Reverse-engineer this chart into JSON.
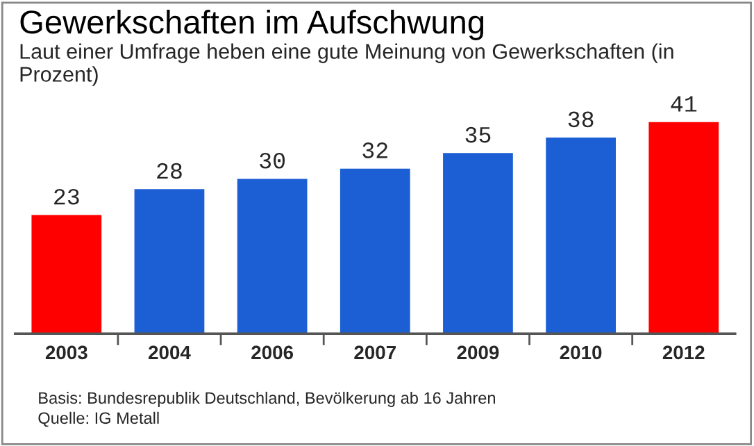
{
  "chart_data": {
    "type": "bar",
    "title": "Gewerkschaften im Aufschwung",
    "subtitle": "Laut einer Umfrage heben eine gute Meinung von Gewerkschaften (in Prozent)",
    "categories": [
      "2003",
      "2004",
      "2006",
      "2007",
      "2009",
      "2010",
      "2012"
    ],
    "values": [
      23,
      28,
      30,
      32,
      35,
      38,
      41
    ],
    "colors": [
      "#ff0000",
      "#1c5fd4",
      "#1c5fd4",
      "#1c5fd4",
      "#1c5fd4",
      "#1c5fd4",
      "#ff0000"
    ],
    "data_labels": true,
    "grid": false,
    "legend": false,
    "annotations": [
      "Basis: Bundesrepublik Deutschland, Bevölkerung ab 16 Jahren",
      "Quelle: IG Metall"
    ]
  }
}
